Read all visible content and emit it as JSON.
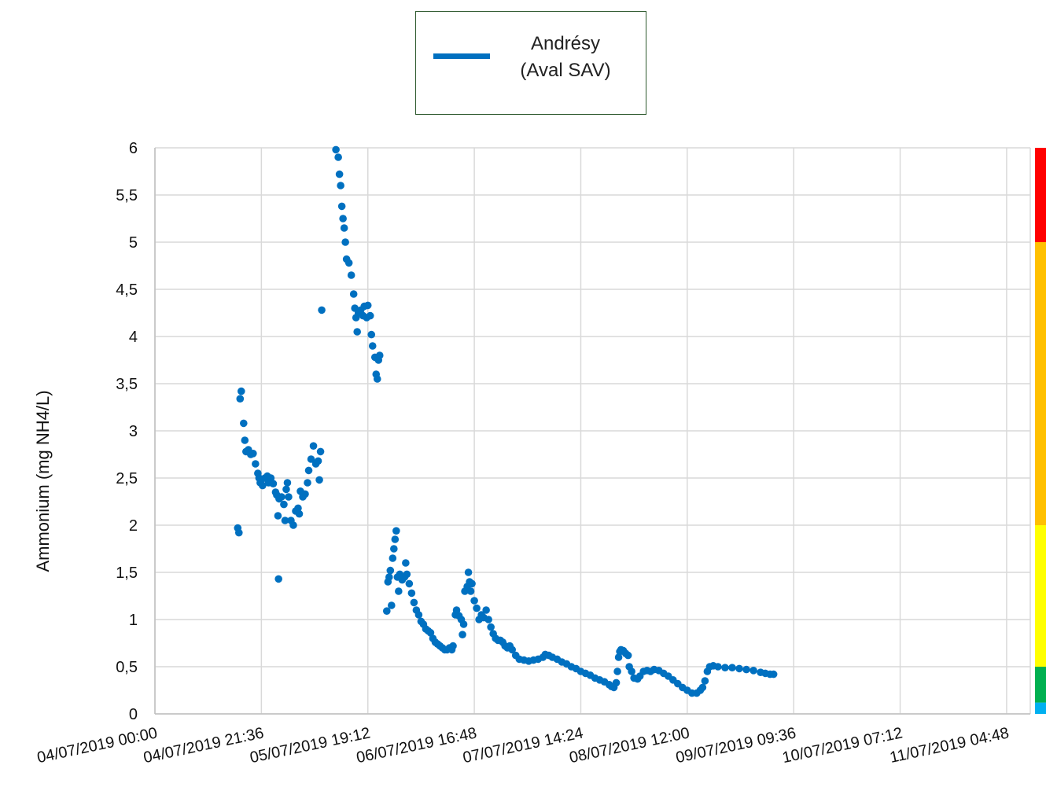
{
  "chart_data": {
    "type": "scatter",
    "title": "",
    "ylabel": "Ammonium (mg NH4/L)",
    "xlabel": "",
    "ylim": [
      0,
      6
    ],
    "xlim": [
      0,
      7.4
    ],
    "y_ticks": [
      "0",
      "0,5",
      "1",
      "1,5",
      "2",
      "2,5",
      "3",
      "3,5",
      "4",
      "4,5",
      "5",
      "5,5",
      "6"
    ],
    "x_ticks": [
      "04/07/2019 00:00",
      "04/07/2019 21:36",
      "05/07/2019 19:12",
      "06/07/2019 16:48",
      "07/07/2019 14:24",
      "08/07/2019 12:00",
      "09/07/2019 09:36",
      "10/07/2019 07:12",
      "11/07/2019 04:48"
    ],
    "x_tick_step_days": 0.9,
    "grid": true,
    "legend_position": "top-center",
    "series": [
      {
        "name": "Andrésy\n(Aval SAV)",
        "color": "#0070c0",
        "points": [
          [
            0.7,
            1.97
          ],
          [
            0.71,
            1.92
          ],
          [
            0.72,
            3.34
          ],
          [
            0.73,
            3.42
          ],
          [
            0.75,
            3.08
          ],
          [
            0.76,
            2.9
          ],
          [
            0.77,
            2.78
          ],
          [
            0.79,
            2.8
          ],
          [
            0.81,
            2.75
          ],
          [
            0.83,
            2.76
          ],
          [
            0.85,
            2.65
          ],
          [
            0.87,
            2.55
          ],
          [
            0.88,
            2.5
          ],
          [
            0.89,
            2.45
          ],
          [
            0.9,
            2.48
          ],
          [
            0.91,
            2.42
          ],
          [
            0.93,
            2.5
          ],
          [
            0.95,
            2.52
          ],
          [
            0.96,
            2.45
          ],
          [
            0.98,
            2.5
          ],
          [
            1.0,
            2.44
          ],
          [
            1.02,
            2.35
          ],
          [
            1.03,
            2.32
          ],
          [
            1.04,
            2.1
          ],
          [
            1.045,
            1.43
          ],
          [
            1.05,
            2.28
          ],
          [
            1.07,
            2.3
          ],
          [
            1.09,
            2.22
          ],
          [
            1.1,
            2.05
          ],
          [
            1.11,
            2.38
          ],
          [
            1.12,
            2.45
          ],
          [
            1.13,
            2.3
          ],
          [
            1.15,
            2.05
          ],
          [
            1.17,
            2.0
          ],
          [
            1.19,
            2.15
          ],
          [
            1.21,
            2.18
          ],
          [
            1.22,
            2.12
          ],
          [
            1.23,
            2.36
          ],
          [
            1.25,
            2.3
          ],
          [
            1.27,
            2.33
          ],
          [
            1.29,
            2.45
          ],
          [
            1.3,
            2.58
          ],
          [
            1.32,
            2.7
          ],
          [
            1.34,
            2.84
          ],
          [
            1.36,
            2.65
          ],
          [
            1.38,
            2.68
          ],
          [
            1.39,
            2.48
          ],
          [
            1.4,
            2.78
          ],
          [
            1.41,
            4.28
          ],
          [
            1.53,
            5.98
          ],
          [
            1.55,
            5.9
          ],
          [
            1.56,
            5.72
          ],
          [
            1.57,
            5.6
          ],
          [
            1.58,
            5.38
          ],
          [
            1.59,
            5.25
          ],
          [
            1.6,
            5.15
          ],
          [
            1.61,
            5.0
          ],
          [
            1.62,
            4.82
          ],
          [
            1.64,
            4.78
          ],
          [
            1.66,
            4.65
          ],
          [
            1.68,
            4.45
          ],
          [
            1.69,
            4.3
          ],
          [
            1.7,
            4.2
          ],
          [
            1.71,
            4.05
          ],
          [
            1.72,
            4.25
          ],
          [
            1.74,
            4.28
          ],
          [
            1.76,
            4.22
          ],
          [
            1.77,
            4.32
          ],
          [
            1.79,
            4.2
          ],
          [
            1.8,
            4.33
          ],
          [
            1.82,
            4.22
          ],
          [
            1.83,
            4.02
          ],
          [
            1.84,
            3.9
          ],
          [
            1.86,
            3.78
          ],
          [
            1.87,
            3.6
          ],
          [
            1.88,
            3.55
          ],
          [
            1.89,
            3.75
          ],
          [
            1.9,
            3.8
          ],
          [
            1.96,
            1.09
          ],
          [
            1.97,
            1.4
          ],
          [
            1.98,
            1.45
          ],
          [
            1.99,
            1.52
          ],
          [
            2.0,
            1.15
          ],
          [
            2.01,
            1.65
          ],
          [
            2.02,
            1.75
          ],
          [
            2.03,
            1.85
          ],
          [
            2.04,
            1.94
          ],
          [
            2.05,
            1.45
          ],
          [
            2.06,
            1.3
          ],
          [
            2.07,
            1.48
          ],
          [
            2.09,
            1.42
          ],
          [
            2.11,
            1.45
          ],
          [
            2.12,
            1.6
          ],
          [
            2.13,
            1.48
          ],
          [
            2.15,
            1.38
          ],
          [
            2.17,
            1.28
          ],
          [
            2.19,
            1.18
          ],
          [
            2.21,
            1.1
          ],
          [
            2.23,
            1.05
          ],
          [
            2.25,
            0.98
          ],
          [
            2.27,
            0.95
          ],
          [
            2.29,
            0.9
          ],
          [
            2.31,
            0.88
          ],
          [
            2.33,
            0.86
          ],
          [
            2.35,
            0.8
          ],
          [
            2.37,
            0.76
          ],
          [
            2.39,
            0.74
          ],
          [
            2.41,
            0.72
          ],
          [
            2.43,
            0.7
          ],
          [
            2.45,
            0.68
          ],
          [
            2.47,
            0.68
          ],
          [
            2.49,
            0.7
          ],
          [
            2.51,
            0.68
          ],
          [
            2.52,
            0.72
          ],
          [
            2.54,
            1.05
          ],
          [
            2.55,
            1.1
          ],
          [
            2.57,
            1.04
          ],
          [
            2.59,
            1.0
          ],
          [
            2.6,
            0.84
          ],
          [
            2.61,
            0.95
          ],
          [
            2.62,
            1.3
          ],
          [
            2.64,
            1.35
          ],
          [
            2.65,
            1.5
          ],
          [
            2.66,
            1.4
          ],
          [
            2.67,
            1.3
          ],
          [
            2.68,
            1.38
          ],
          [
            2.7,
            1.2
          ],
          [
            2.72,
            1.12
          ],
          [
            2.74,
            1.0
          ],
          [
            2.76,
            1.05
          ],
          [
            2.78,
            1.02
          ],
          [
            2.8,
            1.1
          ],
          [
            2.82,
            1.0
          ],
          [
            2.84,
            0.92
          ],
          [
            2.86,
            0.85
          ],
          [
            2.88,
            0.8
          ],
          [
            2.9,
            0.78
          ],
          [
            2.92,
            0.78
          ],
          [
            2.94,
            0.76
          ],
          [
            2.96,
            0.72
          ],
          [
            2.98,
            0.7
          ],
          [
            3.0,
            0.72
          ],
          [
            3.02,
            0.68
          ],
          [
            3.05,
            0.62
          ],
          [
            3.08,
            0.58
          ],
          [
            3.12,
            0.57
          ],
          [
            3.16,
            0.56
          ],
          [
            3.2,
            0.57
          ],
          [
            3.24,
            0.58
          ],
          [
            3.28,
            0.6
          ],
          [
            3.3,
            0.63
          ],
          [
            3.33,
            0.62
          ],
          [
            3.36,
            0.6
          ],
          [
            3.4,
            0.58
          ],
          [
            3.44,
            0.55
          ],
          [
            3.48,
            0.53
          ],
          [
            3.52,
            0.5
          ],
          [
            3.56,
            0.48
          ],
          [
            3.6,
            0.45
          ],
          [
            3.64,
            0.43
          ],
          [
            3.68,
            0.41
          ],
          [
            3.72,
            0.38
          ],
          [
            3.76,
            0.36
          ],
          [
            3.8,
            0.34
          ],
          [
            3.84,
            0.31
          ],
          [
            3.86,
            0.29
          ],
          [
            3.88,
            0.28
          ],
          [
            3.9,
            0.33
          ],
          [
            3.91,
            0.45
          ],
          [
            3.92,
            0.6
          ],
          [
            3.93,
            0.66
          ],
          [
            3.94,
            0.68
          ],
          [
            3.96,
            0.67
          ],
          [
            3.98,
            0.64
          ],
          [
            4.0,
            0.62
          ],
          [
            4.01,
            0.5
          ],
          [
            4.03,
            0.45
          ],
          [
            4.05,
            0.38
          ],
          [
            4.08,
            0.37
          ],
          [
            4.1,
            0.4
          ],
          [
            4.13,
            0.45
          ],
          [
            4.16,
            0.46
          ],
          [
            4.19,
            0.45
          ],
          [
            4.22,
            0.47
          ],
          [
            4.26,
            0.46
          ],
          [
            4.3,
            0.43
          ],
          [
            4.34,
            0.4
          ],
          [
            4.38,
            0.36
          ],
          [
            4.42,
            0.32
          ],
          [
            4.46,
            0.28
          ],
          [
            4.5,
            0.25
          ],
          [
            4.54,
            0.22
          ],
          [
            4.58,
            0.22
          ],
          [
            4.61,
            0.25
          ],
          [
            4.63,
            0.28
          ],
          [
            4.65,
            0.35
          ],
          [
            4.67,
            0.45
          ],
          [
            4.69,
            0.5
          ],
          [
            4.72,
            0.51
          ],
          [
            4.76,
            0.5
          ],
          [
            4.82,
            0.49
          ],
          [
            4.88,
            0.49
          ],
          [
            4.94,
            0.48
          ],
          [
            5.0,
            0.47
          ],
          [
            5.06,
            0.46
          ],
          [
            5.12,
            0.44
          ],
          [
            5.16,
            0.43
          ],
          [
            5.2,
            0.42
          ],
          [
            5.23,
            0.42
          ]
        ]
      }
    ],
    "quality_bands": [
      {
        "from": 0,
        "to": 0.12,
        "color": "#00b0f0"
      },
      {
        "from": 0.12,
        "to": 0.5,
        "color": "#00b050"
      },
      {
        "from": 0.5,
        "to": 2,
        "color": "#ffff00"
      },
      {
        "from": 2,
        "to": 5,
        "color": "#ffc000"
      },
      {
        "from": 5,
        "to": 6,
        "color": "#ff0000"
      }
    ]
  }
}
